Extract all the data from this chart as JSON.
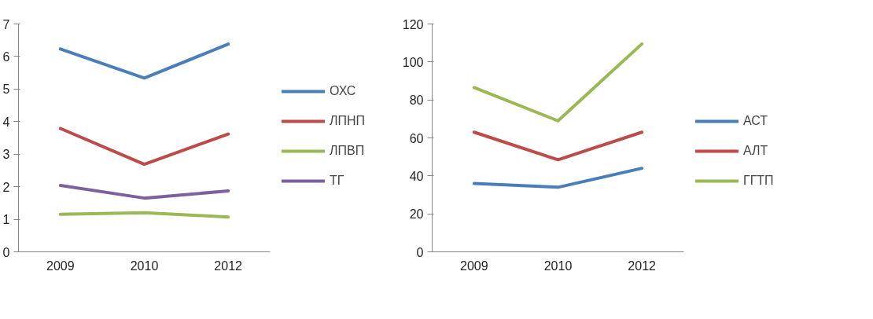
{
  "chart_data": [
    {
      "type": "line",
      "categories": [
        "2009",
        "2010",
        "2012"
      ],
      "ylim": [
        0,
        7
      ],
      "yticks": [
        0,
        1,
        2,
        3,
        4,
        5,
        6,
        7
      ],
      "grid": false,
      "legend": "right",
      "series": [
        {
          "name": "ОХС",
          "color": "#4a7ebb",
          "values": [
            6.23,
            5.34,
            6.38
          ]
        },
        {
          "name": "ЛПНП",
          "color": "#be4b48",
          "values": [
            3.79,
            2.69,
            3.62
          ]
        },
        {
          "name": "ЛПВП",
          "color": "#98b954",
          "values": [
            1.15,
            1.2,
            1.07
          ]
        },
        {
          "name": "ТГ",
          "color": "#7d60a0",
          "values": [
            2.04,
            1.65,
            1.87
          ]
        }
      ]
    },
    {
      "type": "line",
      "categories": [
        "2009",
        "2010",
        "2012"
      ],
      "ylim": [
        0,
        120
      ],
      "yticks": [
        0,
        20,
        40,
        60,
        80,
        100,
        120
      ],
      "grid": false,
      "legend": "right",
      "series": [
        {
          "name": "АСТ",
          "color": "#4a7ebb",
          "values": [
            36,
            34,
            44
          ]
        },
        {
          "name": "АЛТ",
          "color": "#be4b48",
          "values": [
            63,
            48.5,
            63
          ]
        },
        {
          "name": "ГГТП",
          "color": "#98b954",
          "values": [
            86.5,
            69,
            109.5
          ]
        }
      ]
    }
  ]
}
